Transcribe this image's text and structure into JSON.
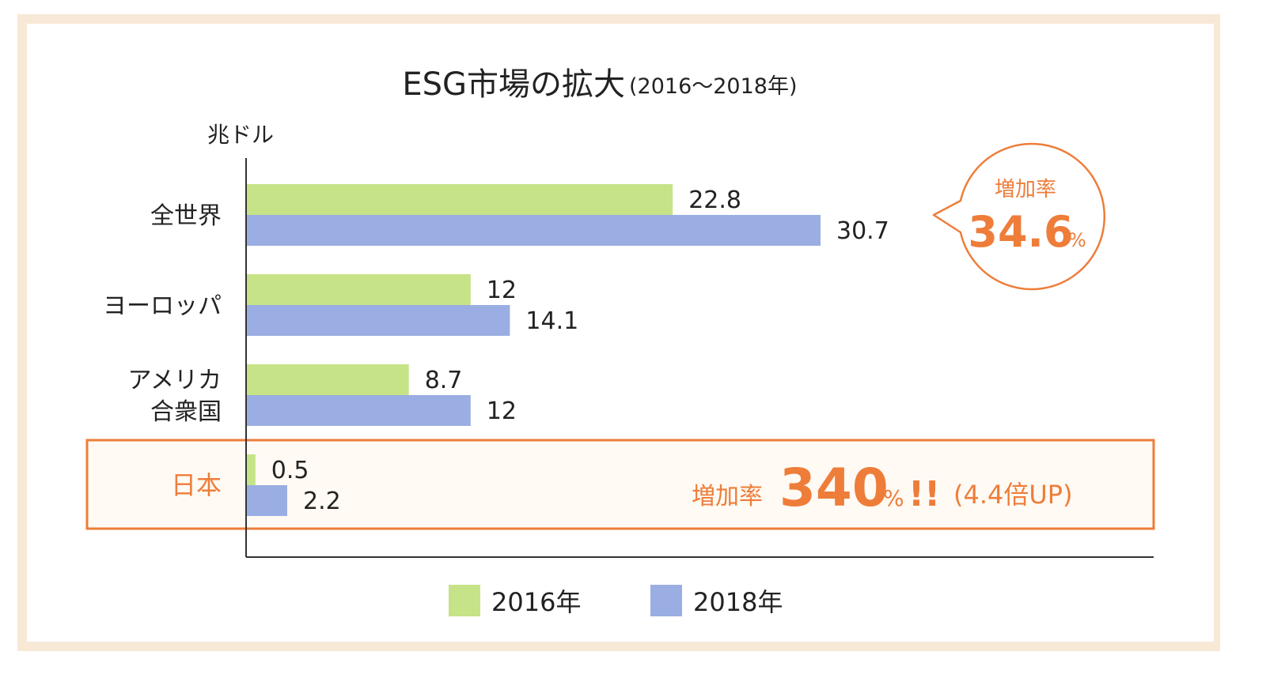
{
  "colors": {
    "series_2016": "#c6e387",
    "series_2018": "#9aaee3",
    "accent": "#ee7d3a",
    "frame": "#f8e8d6",
    "highlight_bg": "#fffaf3"
  },
  "chart_data": {
    "type": "bar",
    "orientation": "horizontal",
    "title": "ESG市場の拡大",
    "subtitle": "(2016～2018年)",
    "unit_label": "兆ドル",
    "xlim": [
      0,
      50
    ],
    "categories": [
      {
        "lines": [
          "全世界"
        ],
        "highlight": false
      },
      {
        "lines": [
          "ヨーロッパ"
        ],
        "highlight": false
      },
      {
        "lines": [
          "アメリカ",
          "合衆国"
        ],
        "highlight": false
      },
      {
        "lines": [
          "日本"
        ],
        "highlight": true
      }
    ],
    "series": [
      {
        "name": "2016年",
        "values": [
          22.8,
          12,
          8.7,
          0.5
        ],
        "labels": [
          "22.8",
          "12",
          "8.7",
          "0.5"
        ]
      },
      {
        "name": "2018年",
        "values": [
          30.7,
          14.1,
          12,
          2.2
        ],
        "labels": [
          "30.7",
          "14.1",
          "12",
          "2.2"
        ]
      }
    ],
    "legend_position": "bottom",
    "annotations": {
      "world_bubble": {
        "label": "増加率",
        "value": "34.6",
        "unit": "%"
      },
      "japan": {
        "label": "増加率",
        "value": "340",
        "unit": "%",
        "exclaim": "!!",
        "note": "(4.4倍UP)"
      }
    }
  }
}
